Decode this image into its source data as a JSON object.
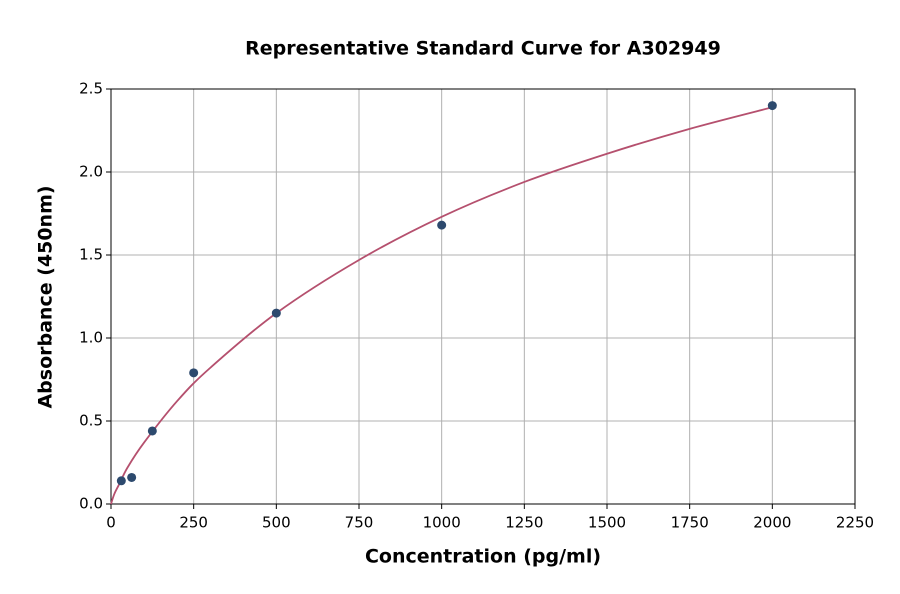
{
  "chart_data": {
    "type": "scatter",
    "title": "Representative Standard Curve for A302949",
    "xlabel": "Concentration (pg/ml)",
    "ylabel": "Absorbance (450nm)",
    "xlim": [
      0,
      2250
    ],
    "ylim": [
      0,
      2.5
    ],
    "xticks": [
      0,
      250,
      500,
      750,
      1000,
      1250,
      1500,
      1750,
      2000,
      2250
    ],
    "yticks": [
      {
        "value": 0,
        "label": "0.0"
      },
      0.5,
      {
        "value": 1,
        "label": "1.0"
      },
      1.5,
      {
        "value": 2,
        "label": "2.0"
      },
      2.5
    ],
    "grid": true,
    "series": [
      {
        "type": "scatter",
        "color": "#2d4a6e",
        "x": [
          31.25,
          62.5,
          125,
          250,
          500,
          1000,
          2000
        ],
        "values": [
          0.14,
          0.16,
          0.44,
          0.79,
          1.15,
          1.68,
          2.4
        ]
      },
      {
        "type": "line",
        "color": "#b5506e",
        "x": [
          0,
          10,
          25,
          50,
          100,
          200,
          300,
          500,
          750,
          1000,
          1250,
          1500,
          1750,
          2000
        ],
        "values": [
          0,
          0.06,
          0.12,
          0.22,
          0.37,
          0.62,
          0.82,
          1.15,
          1.47,
          1.73,
          1.94,
          2.11,
          2.26,
          2.39
        ]
      }
    ]
  }
}
